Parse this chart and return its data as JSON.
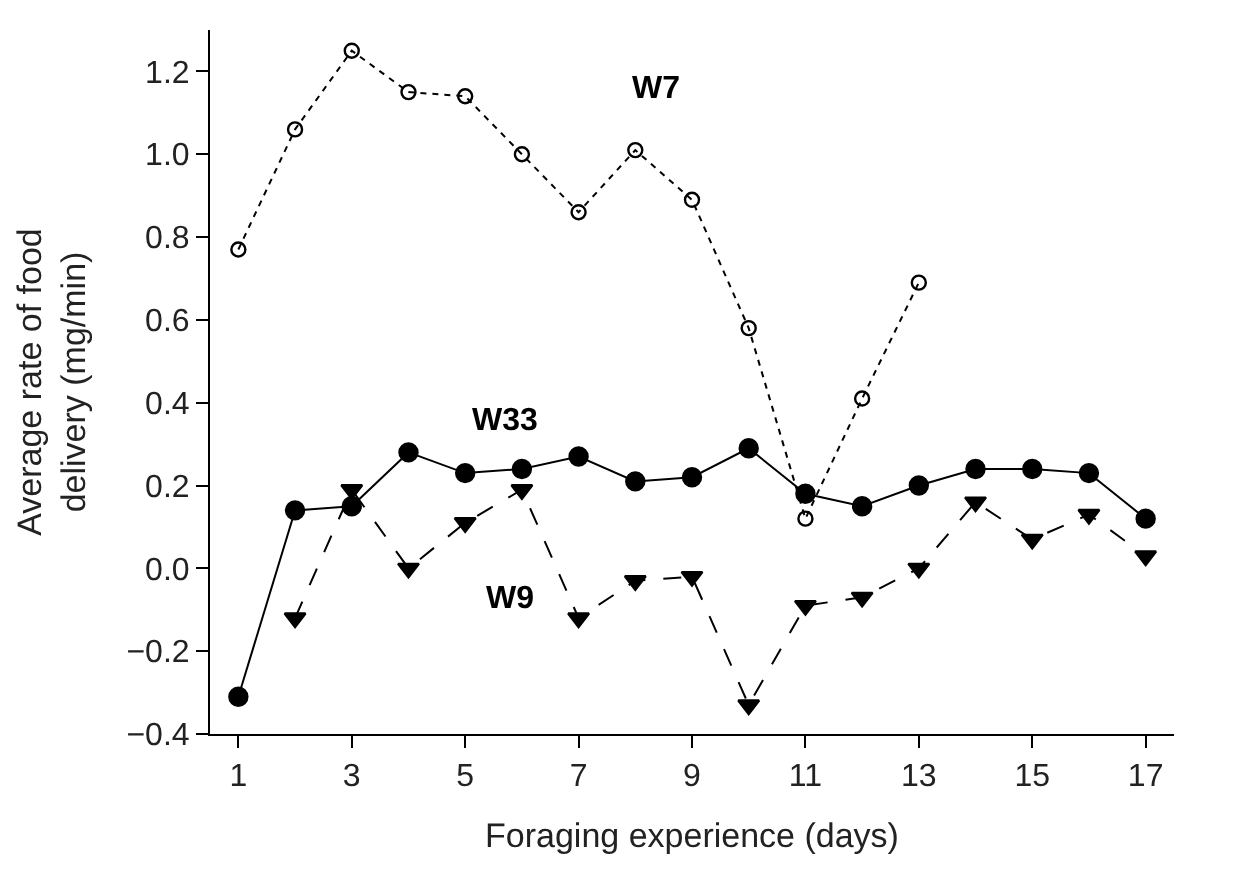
{
  "chart_data": {
    "type": "line",
    "xlabel": "Foraging experience (days)",
    "ylabel": "Average rate of food\ndelivery (mg/min)",
    "xlim": [
      0.5,
      17.5
    ],
    "xticks": [
      1,
      3,
      5,
      7,
      9,
      11,
      13,
      15,
      17
    ],
    "ylim": [
      -0.4,
      1.3
    ],
    "yticks": [
      {
        "value": -0.4,
        "label": "−0.4"
      },
      {
        "value": -0.2,
        "label": "−0.2"
      },
      {
        "value": 0.0,
        "label": "0.0"
      },
      {
        "value": 0.2,
        "label": "0.2"
      },
      {
        "value": 0.4,
        "label": "0.4"
      },
      {
        "value": 0.6,
        "label": "0.6"
      },
      {
        "value": 0.8,
        "label": "0.8"
      },
      {
        "value": 1.0,
        "label": "1.0"
      },
      {
        "value": 1.2,
        "label": "1.2"
      }
    ],
    "legend": false,
    "series": [
      {
        "name": "W7",
        "color": "#000000",
        "marker": "circle-open",
        "line_style": "dotted",
        "x": [
          1,
          2,
          3,
          4,
          5,
          6,
          7,
          8,
          9,
          10,
          11,
          12,
          13
        ],
        "values": [
          0.77,
          1.06,
          1.25,
          1.15,
          1.14,
          1.0,
          0.86,
          1.01,
          0.89,
          0.58,
          0.12,
          0.41,
          0.69
        ]
      },
      {
        "name": "W33",
        "color": "#000000",
        "marker": "circle",
        "line_style": "solid",
        "x": [
          1,
          2,
          3,
          4,
          5,
          6,
          7,
          8,
          9,
          10,
          11,
          12,
          13,
          14,
          15,
          16,
          17
        ],
        "values": [
          -0.31,
          0.14,
          0.15,
          0.28,
          0.23,
          0.24,
          0.27,
          0.21,
          0.22,
          0.29,
          0.18,
          0.15,
          0.2,
          0.24,
          0.24,
          0.23,
          0.12
        ]
      },
      {
        "name": "W9",
        "color": "#000000",
        "marker": "triangle",
        "line_style": "dashed",
        "x": [
          2,
          3,
          4,
          5,
          6,
          7,
          8,
          9,
          10,
          11,
          12,
          13,
          14,
          15,
          16,
          17
        ],
        "values": [
          -0.12,
          0.19,
          0.0,
          0.11,
          0.19,
          -0.12,
          -0.03,
          -0.02,
          -0.33,
          -0.09,
          -0.07,
          0.0,
          0.16,
          0.07,
          0.13,
          0.03
        ]
      }
    ]
  }
}
